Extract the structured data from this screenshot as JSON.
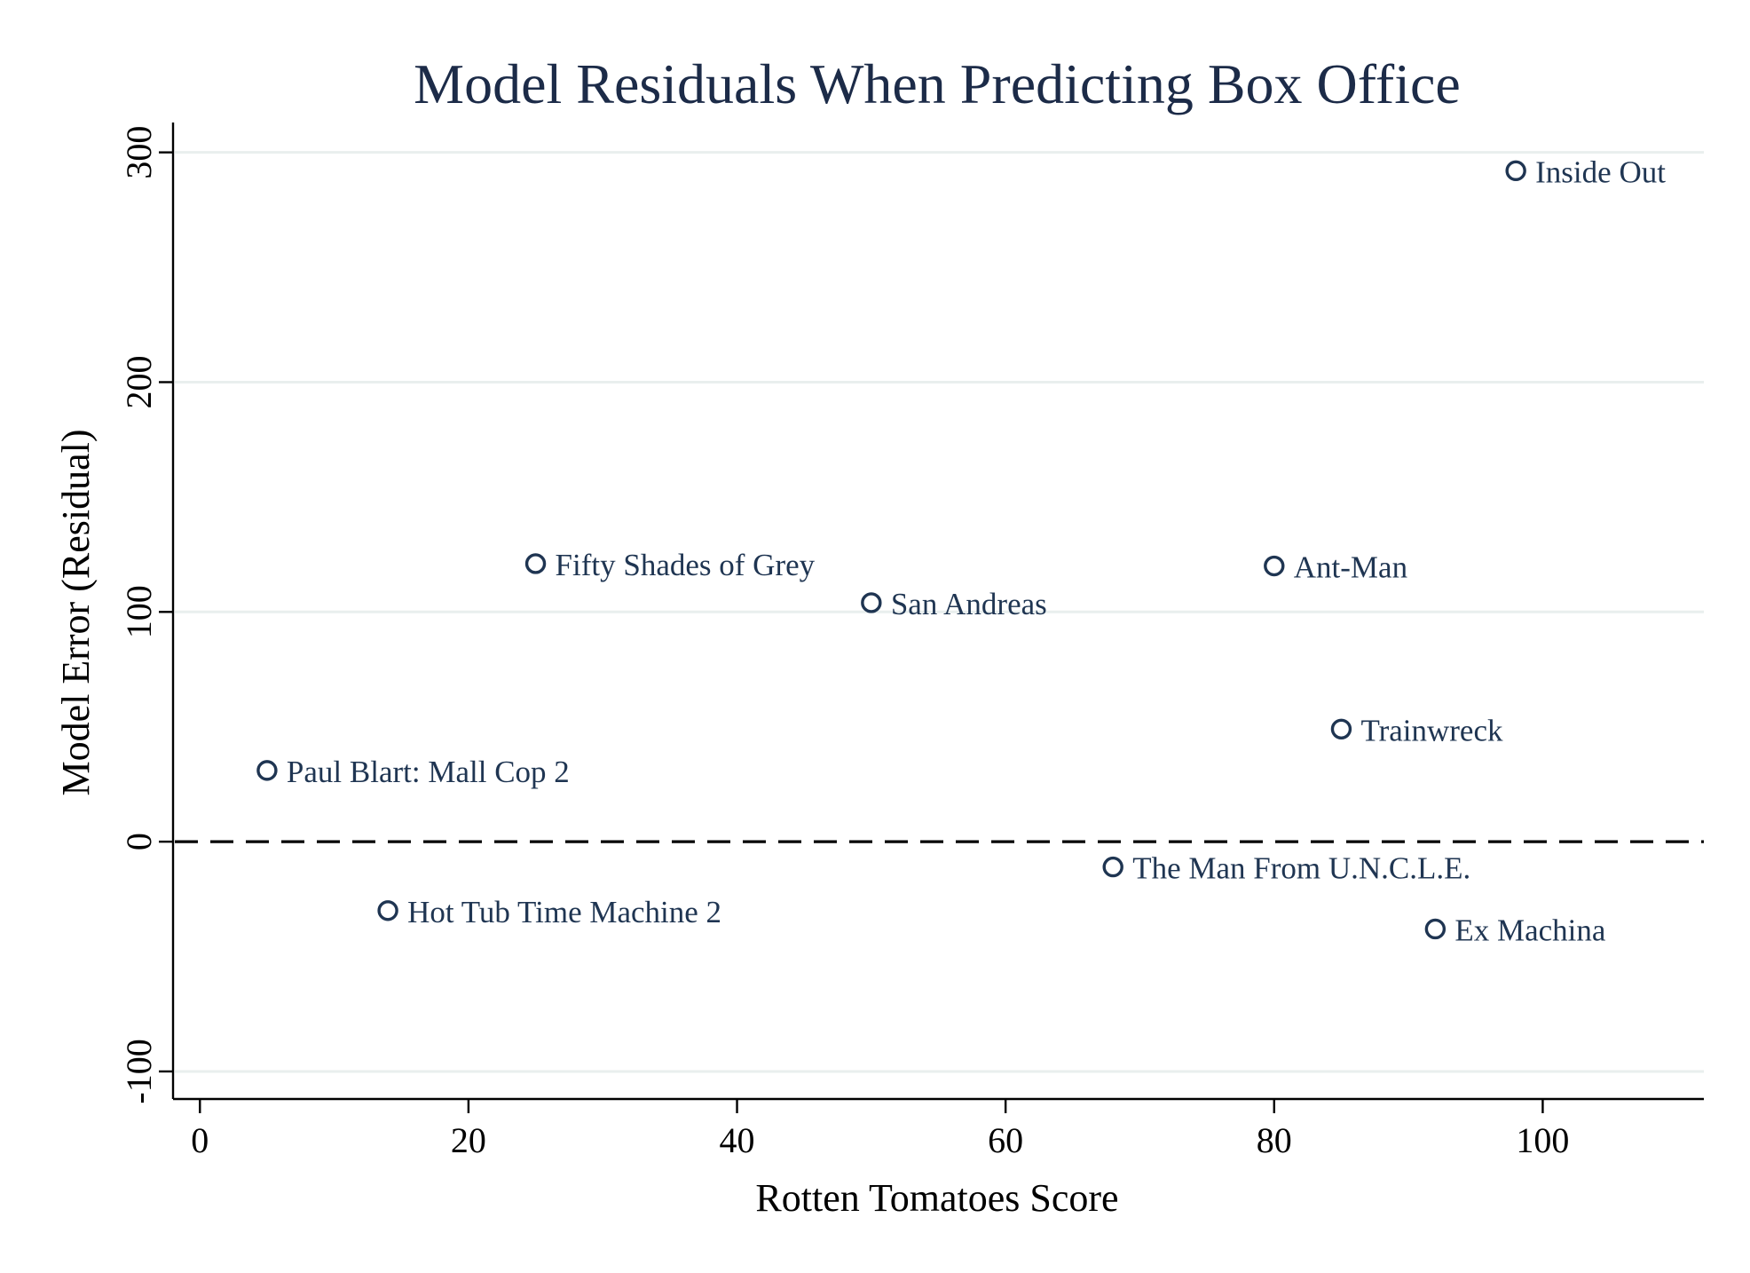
{
  "chart_data": {
    "type": "scatter",
    "title": "Model Residuals When Predicting Box Office",
    "xlabel": "Rotten Tomatoes Score",
    "ylabel": "Model Error (Residual)",
    "xlim": [
      -2,
      112
    ],
    "ylim": [
      -112,
      313
    ],
    "xticks": [
      0,
      20,
      40,
      60,
      80,
      100
    ],
    "yticks": [
      -100,
      0,
      100,
      200,
      300
    ],
    "xtick_labels": [
      "0",
      "20",
      "40",
      "60",
      "80",
      "100"
    ],
    "ytick_labels": [
      "-100",
      "0",
      "100",
      "200",
      "300"
    ],
    "grid": true,
    "reference_line": {
      "y": 0,
      "style": "dashed"
    },
    "marker_color": "#1f3552",
    "title_color": "#1c2b48",
    "points": [
      {
        "label": "Inside Out",
        "x": 98,
        "y": 292
      },
      {
        "label": "Fifty Shades of Grey",
        "x": 25,
        "y": 121
      },
      {
        "label": "Ant-Man",
        "x": 80,
        "y": 120
      },
      {
        "label": "San Andreas",
        "x": 50,
        "y": 104
      },
      {
        "label": "Trainwreck",
        "x": 85,
        "y": 49
      },
      {
        "label": "Paul Blart: Mall Cop 2",
        "x": 5,
        "y": 31
      },
      {
        "label": "The Man From U.N.C.L.E.",
        "x": 68,
        "y": -11
      },
      {
        "label": "Hot Tub Time Machine 2",
        "x": 14,
        "y": -30
      },
      {
        "label": "Ex Machina",
        "x": 92,
        "y": -38
      }
    ]
  }
}
